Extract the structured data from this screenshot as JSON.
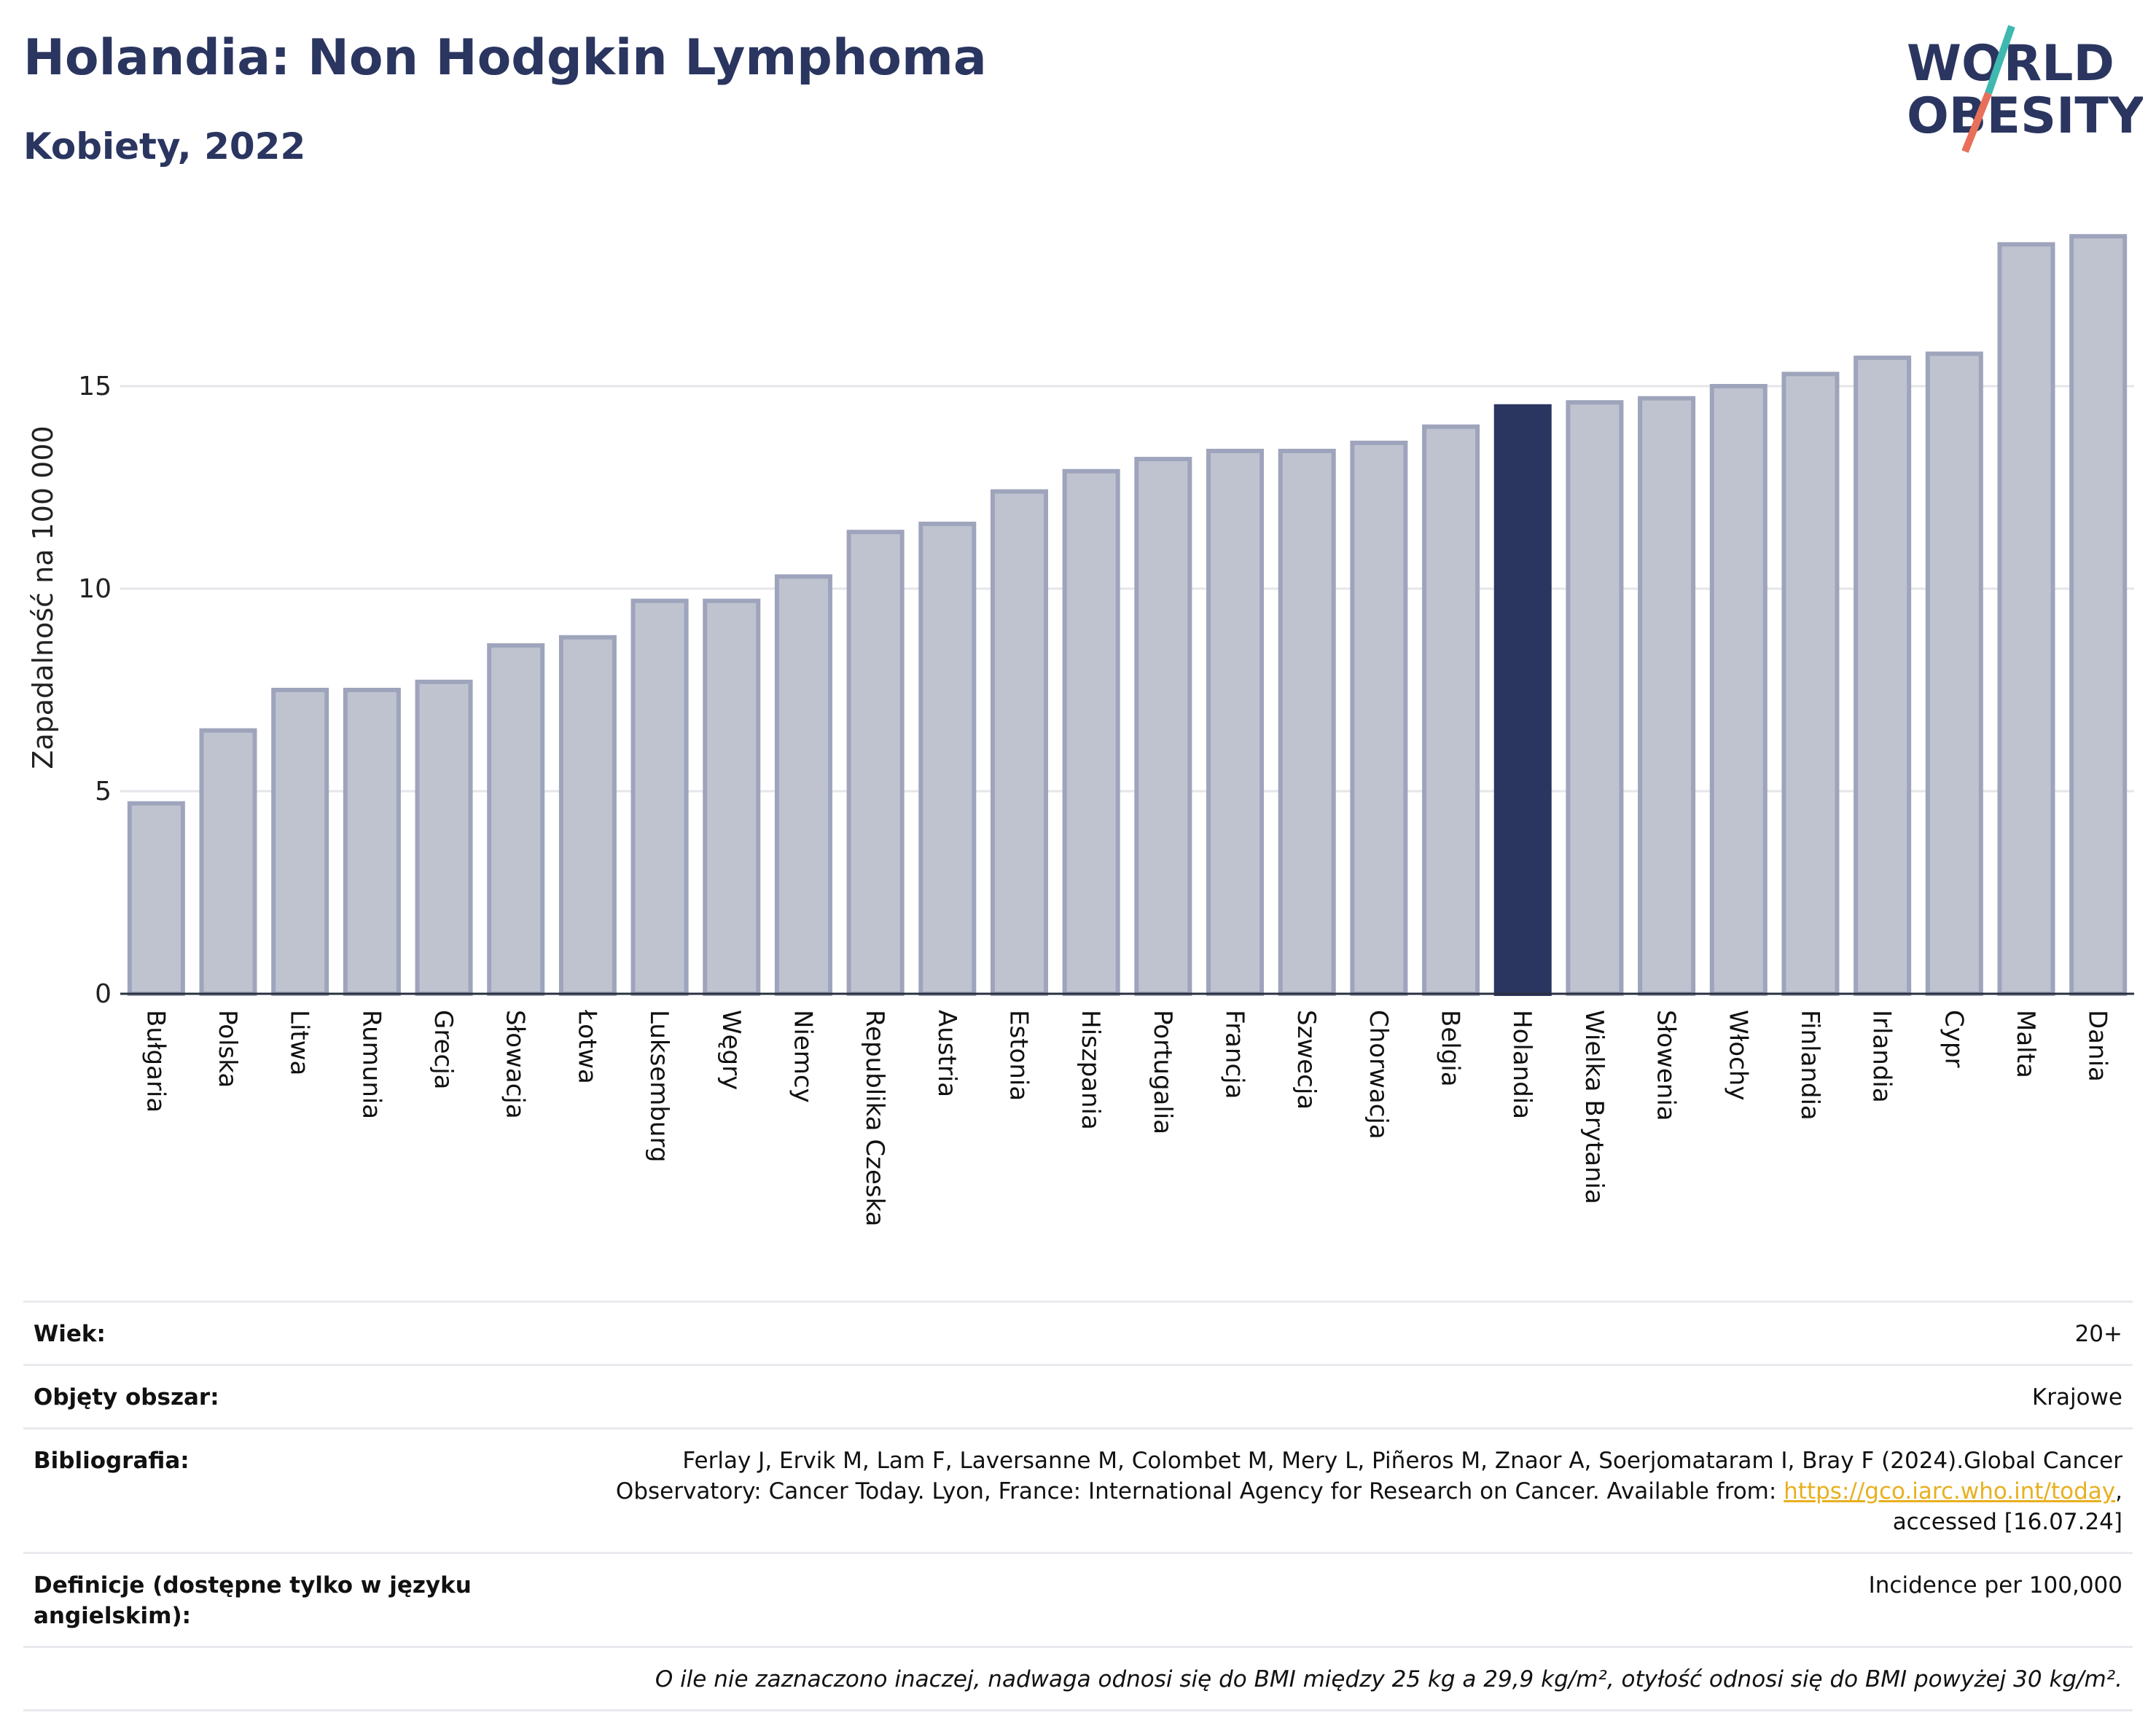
{
  "header": {
    "title": "Holandia: Non Hodgkin Lymphoma",
    "subtitle": "Kobiety, 2022"
  },
  "logo": {
    "line1": "WORLD",
    "line2": "OBESITY"
  },
  "colors": {
    "bar": "#bfc3d0",
    "bar_stroke": "#9ea4bb",
    "highlight": "#2a3560",
    "grid": "#e4e6ea"
  },
  "chart_data": {
    "type": "bar",
    "title": "Holandia: Non Hodgkin Lymphoma",
    "subtitle": "Kobiety, 2022",
    "xlabel": "",
    "ylabel": "Zapadalność na 100 000",
    "ylim": [
      0,
      19
    ],
    "yticks": [
      0,
      5,
      10,
      15
    ],
    "grid": true,
    "highlight": "Holandia",
    "categories": [
      "Bułgaria",
      "Polska",
      "Litwa",
      "Rumunia",
      "Grecja",
      "Słowacja",
      "Łotwa",
      "Luksemburg",
      "Węgry",
      "Niemcy",
      "Republika Czeska",
      "Austria",
      "Estonia",
      "Hiszpania",
      "Portugalia",
      "Francja",
      "Szwecja",
      "Chorwacja",
      "Belgia",
      "Holandia",
      "Wielka Brytania",
      "Słowenia",
      "Włochy",
      "Finlandia",
      "Irlandia",
      "Cypr",
      "Malta",
      "Dania"
    ],
    "values": [
      4.7,
      6.5,
      7.5,
      7.5,
      7.7,
      8.6,
      8.8,
      9.7,
      9.7,
      10.3,
      11.4,
      11.6,
      12.4,
      12.9,
      13.2,
      13.4,
      13.4,
      13.6,
      14.0,
      14.5,
      14.6,
      14.7,
      15.0,
      15.3,
      15.7,
      15.8,
      18.5,
      18.7
    ]
  },
  "info": {
    "age_label": "Wiek:",
    "age_value": "20+",
    "area_label": "Objęty obszar:",
    "area_value": "Krajowe",
    "biblio_label": "Bibliografia:",
    "biblio_text1": "Ferlay J, Ervik M, Lam F, Laversanne M, Colombet M, Mery L, Piñeros M, Znaor A, Soerjomataram I, Bray F (2024).Global Cancer Observatory: Cancer Today. Lyon, France: International Agency for Research on Cancer. Available from: ",
    "biblio_link": "https://gco.iarc.who.int/today",
    "biblio_text2": ", accessed [16.07.24]",
    "def_label": "Definicje (dostępne tylko w języku angielskim):",
    "def_value": "Incidence per 100,000",
    "note": "O ile nie zaznaczono inaczej, nadwaga odnosi się do BMI między 25 kg a 29,9 kg/m², otyłość odnosi się do BMI powyżej 30 kg/m²."
  }
}
